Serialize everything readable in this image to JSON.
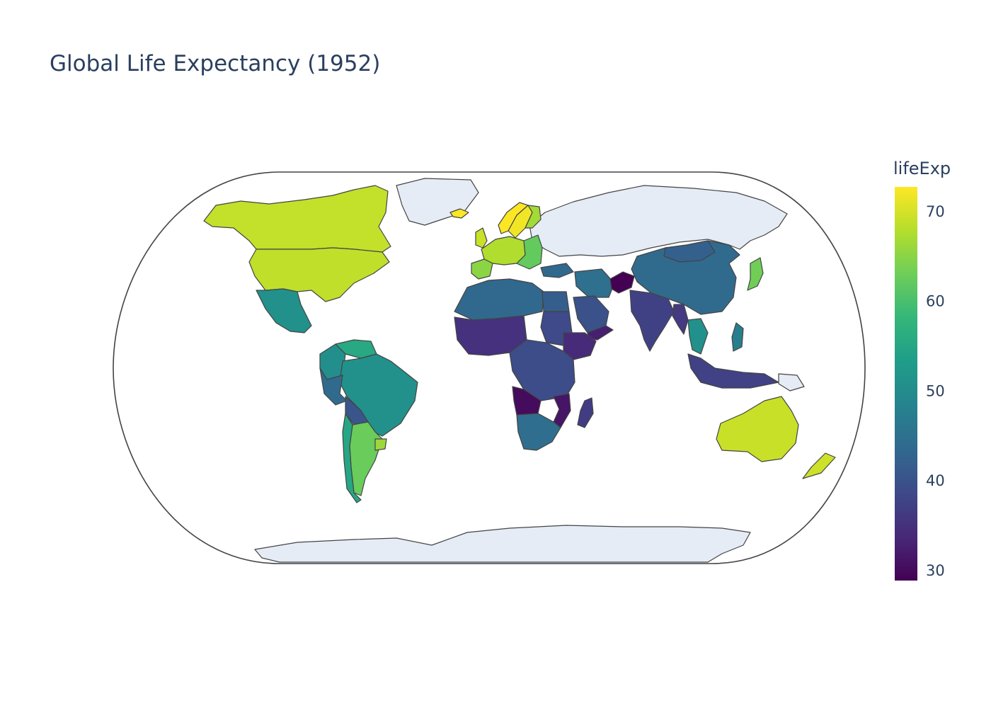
{
  "title": "Global Life Expectancy (1952)",
  "chart_data": {
    "type": "choropleth",
    "title": "Global Life Expectancy (1952)",
    "projection": "natural earth",
    "colorscale": "Viridis",
    "colorbar": {
      "title": "lifeExp",
      "range": [
        28.8,
        72.67
      ],
      "ticks": [
        30,
        40,
        50,
        60,
        70
      ],
      "tick_labels": [
        "30",
        "40",
        "50",
        "60",
        "70"
      ]
    },
    "colors": {
      "viridis": [
        "#440154",
        "#482878",
        "#3e4989",
        "#31688e",
        "#26828e",
        "#1f9e89",
        "#35b779",
        "#6ece58",
        "#b5de2b",
        "#fde725"
      ],
      "no_data": "#e5ecf6",
      "border": "#444444",
      "text": "#2a3f5f"
    },
    "regions": [
      {
        "name": "Canada",
        "value": 68.75
      },
      {
        "name": "United States",
        "value": 68.44
      },
      {
        "name": "Mexico",
        "value": 50.79
      },
      {
        "name": "Greenland",
        "value": null
      },
      {
        "name": "Russia",
        "value": null
      },
      {
        "name": "Antarctica",
        "value": null
      },
      {
        "name": "Norway",
        "value": 72.67
      },
      {
        "name": "Sweden",
        "value": 71.86
      },
      {
        "name": "Finland",
        "value": 66.55
      },
      {
        "name": "Iceland",
        "value": 72.49
      },
      {
        "name": "United Kingdom",
        "value": 69.18
      },
      {
        "name": "Western Europe",
        "value": 67.5
      },
      {
        "name": "Spain",
        "value": 64.94
      },
      {
        "name": "Eastern Europe",
        "value": 62.0
      },
      {
        "name": "Turkey",
        "value": 43.59
      },
      {
        "name": "Iran",
        "value": 44.87
      },
      {
        "name": "Afghanistan",
        "value": 28.8
      },
      {
        "name": "China",
        "value": 44.0
      },
      {
        "name": "Mongolia",
        "value": 42.24
      },
      {
        "name": "India",
        "value": 37.37
      },
      {
        "name": "Myanmar",
        "value": 36.32
      },
      {
        "name": "Thailand",
        "value": 50.85
      },
      {
        "name": "Japan",
        "value": 63.03
      },
      {
        "name": "Indonesia",
        "value": 37.47
      },
      {
        "name": "Philippines",
        "value": 47.75
      },
      {
        "name": "Papua New Guinea",
        "value": null
      },
      {
        "name": "Australia",
        "value": 69.12
      },
      {
        "name": "New Zealand",
        "value": 69.39
      },
      {
        "name": "Saudi Arabia",
        "value": 39.88
      },
      {
        "name": "Yemen",
        "value": 32.55
      },
      {
        "name": "North Africa",
        "value": 43.5
      },
      {
        "name": "Egypt",
        "value": 41.89
      },
      {
        "name": "Sudan",
        "value": 38.64
      },
      {
        "name": "Ethiopia",
        "value": 34.08
      },
      {
        "name": "West Africa",
        "value": 35.0
      },
      {
        "name": "Central Africa",
        "value": 39.14
      },
      {
        "name": "Angola",
        "value": 30.02
      },
      {
        "name": "Mozambique",
        "value": 31.29
      },
      {
        "name": "Southern Africa",
        "value": 44.5
      },
      {
        "name": "Madagascar",
        "value": 36.68
      },
      {
        "name": "Brazil",
        "value": 50.92
      },
      {
        "name": "Venezuela",
        "value": 55.09
      },
      {
        "name": "Colombia",
        "value": 50.64
      },
      {
        "name": "Peru",
        "value": 43.9
      },
      {
        "name": "Bolivia",
        "value": 40.41
      },
      {
        "name": "Argentina",
        "value": 62.49
      },
      {
        "name": "Chile",
        "value": 54.75
      },
      {
        "name": "Uruguay",
        "value": 66.07
      }
    ]
  }
}
